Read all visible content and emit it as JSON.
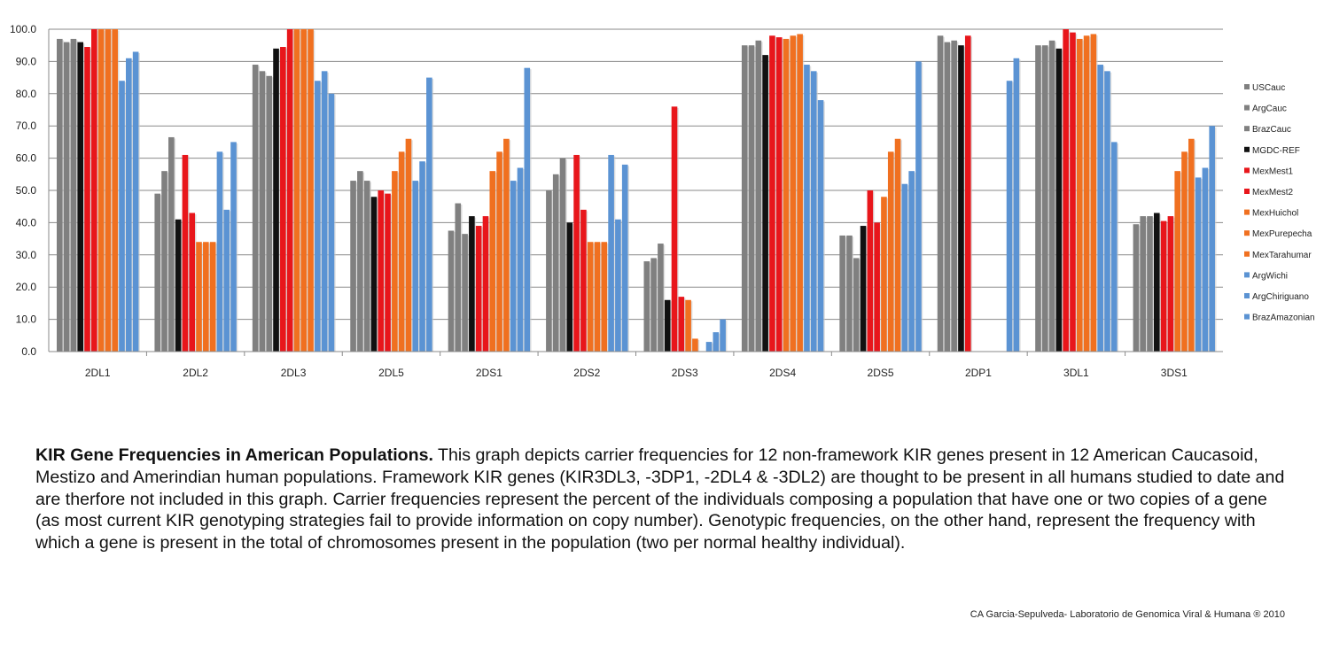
{
  "chart_data": {
    "type": "bar",
    "categories": [
      "2DL1",
      "2DL2",
      "2DL3",
      "2DL5",
      "2DS1",
      "2DS2",
      "2DS3",
      "2DS4",
      "2DS5",
      "2DP1",
      "3DL1",
      "3DS1"
    ],
    "ylim": [
      0,
      100
    ],
    "yticks": [
      "0.0",
      "10.0",
      "20.0",
      "30.0",
      "40.0",
      "50.0",
      "60.0",
      "70.0",
      "80.0",
      "90.0",
      "100.0"
    ],
    "grid": true,
    "legend_position": "right",
    "series": [
      {
        "name": "USCauc",
        "color": "#808080",
        "values": [
          97,
          49,
          89,
          53,
          37.5,
          50,
          28,
          95,
          36,
          98,
          95,
          39.5
        ]
      },
      {
        "name": "ArgCauc",
        "color": "#808080",
        "values": [
          96,
          56,
          87,
          56,
          46,
          55,
          29,
          95,
          36,
          96,
          95,
          42
        ]
      },
      {
        "name": "BrazCauc",
        "color": "#808080",
        "values": [
          97,
          66.5,
          85.5,
          53,
          36.5,
          60,
          33.5,
          96.5,
          29,
          96.5,
          96.5,
          42
        ]
      },
      {
        "name": "MGDC-REF",
        "color": "#111111",
        "values": [
          96,
          41,
          94,
          48,
          42,
          40,
          16,
          92,
          39,
          95,
          94,
          43
        ]
      },
      {
        "name": "MexMest1",
        "color": "#e8161b",
        "values": [
          94.5,
          61,
          94.5,
          50,
          39,
          61,
          76,
          98,
          50,
          98,
          100,
          40.5
        ]
      },
      {
        "name": "MexMest2",
        "color": "#e8161b",
        "values": [
          100,
          43,
          100,
          49,
          42,
          44,
          17,
          97.5,
          40,
          0,
          99,
          42
        ]
      },
      {
        "name": "MexHuichol",
        "color": "#f07020",
        "values": [
          100,
          34,
          100,
          56,
          56,
          34,
          16,
          97,
          48,
          0,
          97,
          56
        ]
      },
      {
        "name": "MexPurepecha",
        "color": "#f07020",
        "values": [
          100,
          34,
          100,
          62,
          62,
          34,
          4,
          98,
          62,
          0,
          98,
          62
        ]
      },
      {
        "name": "MexTarahumar",
        "color": "#f07020",
        "values": [
          100,
          34,
          100,
          66,
          66,
          34,
          0,
          98.5,
          66,
          0,
          98.5,
          66
        ]
      },
      {
        "name": "ArgWichi",
        "color": "#5b93d3",
        "values": [
          84,
          62,
          84,
          53,
          53,
          61,
          3,
          89,
          52,
          0,
          89,
          54
        ]
      },
      {
        "name": "ArgChiriguano",
        "color": "#5b93d3",
        "values": [
          91,
          44,
          87,
          59,
          57,
          41,
          6,
          87,
          56,
          84,
          87,
          57
        ]
      },
      {
        "name": "BrazAmazonian",
        "color": "#5b93d3",
        "values": [
          93,
          65,
          80,
          85,
          88,
          58,
          10,
          78,
          90,
          91,
          65,
          70
        ]
      }
    ]
  },
  "caption": {
    "bold": "KIR Gene Frequencies in American Populations.",
    "text": " This graph depicts carrier frequencies for 12 non-framework KIR genes present in 12 American Caucasoid, Mestizo and Amerindian human populations. Framework KIR genes (KIR3DL3, -3DP1, -2DL4 & -3DL2) are thought to be present in all humans studied to date and are therfore not included in this graph. Carrier frequencies represent the percent of the individuals composing a population that have one or two copies of a gene (as most current KIR genotyping strategies fail to provide information on copy number). Genotypic frequencies, on the other hand, represent the frequency with which a gene is present in the total of chromosomes present in the population (two per normal healthy individual)."
  },
  "credit": "CA Garcia-Sepulveda- Laboratorio de Genomica Viral & Humana ® 2010"
}
